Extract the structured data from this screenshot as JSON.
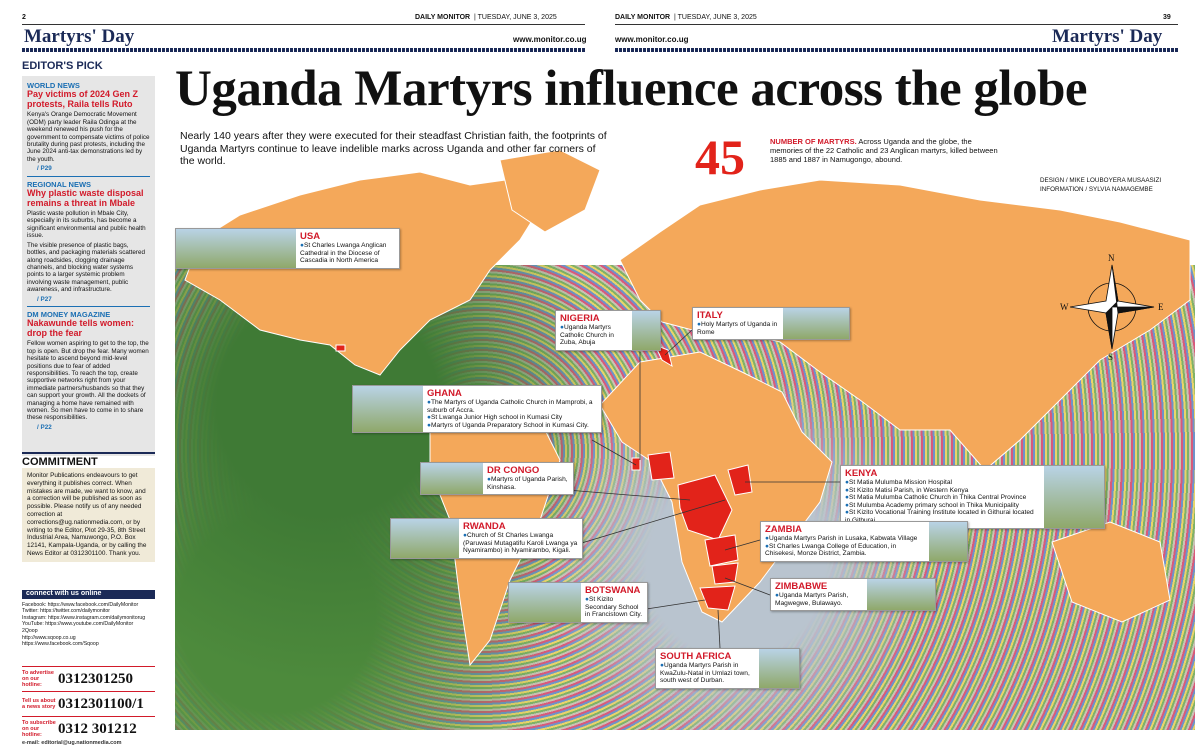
{
  "header": {
    "left_page": "2",
    "left_paper": "DAILY MONITOR",
    "left_date": "| TUESDAY, JUNE 3, 2025",
    "left_section": "Martyrs' Day",
    "left_url": "www.monitor.co.ug",
    "right_page": "39",
    "right_paper": "DAILY MONITOR",
    "right_date": "| TUESDAY, JUNE 3, 2025",
    "right_section": "Martyrs' Day",
    "right_url": "www.monitor.co.ug"
  },
  "sidebar": {
    "heading": "EDITOR'S PICK",
    "items": [
      {
        "kicker": "WORLD NEWS",
        "headline": "Pay victims of 2024 Gen Z protests, Raila tells Ruto",
        "body": [
          "Kenya's Orange Democratic Movement (ODM) party leader Raila Odinga at the weekend renewed his push for the government to compensate victims of police brutality during past protests, including the June 2024 anti-tax demonstrations led by the youth."
        ],
        "ref": "/ P29"
      },
      {
        "kicker": "REGIONAL NEWS",
        "headline": "Why plastic waste disposal remains a threat in Mbale",
        "body": [
          "Plastic waste pollution in Mbale City, especially in its suburbs, has become a significant environmental and public health issue.",
          "The visible presence of plastic bags, bottles, and packaging materials scattered along roadsides, clogging drainage channels, and blocking water systems points to a larger systemic problem involving waste management, public awareness, and infrastructure."
        ],
        "ref": "/ P27"
      },
      {
        "kicker": "DM MONEY MAGAZINE",
        "headline": "Nakawunde tells women: drop the fear",
        "body": [
          "Fellow women aspiring to get to the top, the top is open. But drop the fear. Many women hesitate to ascend beyond mid-level positions due to fear of added responsibilities. To reach the top, create supportive networks right from your immediate partners/husbands so that they can support your growth. All the dockets of managing a home have remained with women. So men have to come in to share these responsibilities."
        ],
        "ref": "/ P22"
      }
    ]
  },
  "commitment": {
    "heading": "COMMITMENT",
    "body": "Monitor Publications endeavours to get everything it publishes correct. When mistakes are made, we want to know, and a correction will be published as soon as possible. Please notify us of any needed correction at corrections@ug.nationmedia.com, or by writing to the Editor, Plot 29-35, 8th Street Industrial Area, Namuwongo, P.O. Box 12141, Kampala-Uganda, or by calling the News Editor at 0312301100. Thank you."
  },
  "connect": {
    "heading": "connect with us online",
    "lines": [
      "Facebook: https://www.facebook.com/DailyMonitor",
      "Twitter: https://twitter.com/dailymonitor",
      "Instagram: https://www.instagram.com/dailymonitorug",
      "YouTube: https://www.youtube.com/DailyMonitor",
      "2Qoop",
      "http://www.sqoop.co.ug",
      "https://www.facebook.com/Sqoop"
    ]
  },
  "hotlines": [
    {
      "label": "To advertise on our hotline:",
      "number": "0312301250"
    },
    {
      "label": "Tell us about a news story",
      "number": "0312301100/1"
    },
    {
      "label": "To subscribe on our hotline:",
      "number": "0312 301212"
    }
  ],
  "email": "e-mail: editorial@ug.nationmedia.com",
  "main": {
    "title": "Uganda Martyrs influence across the globe",
    "intro": "Nearly 140 years after they were executed for their steadfast Christian faith, the footprints of Uganda Martyrs continue to leave indelible marks across Uganda and other far corners of the world.",
    "stat_number": 45,
    "stat_label": "NUMBER OF MARTYRS.",
    "stat_text": "Across Uganda and the globe, the memories of the 22 Catholic and 23 Anglican martyrs, killed between 1885 and 1887 in Namugongo, abound.",
    "credits": [
      "DESIGN / MIKE LOUBOYERA MUSAASIZI",
      "INFORMATION / SYLVIA NAMAGEMBE"
    ],
    "compass": [
      "N",
      "E",
      "S",
      "W"
    ]
  },
  "callouts": [
    {
      "country": "USA",
      "items": [
        "St Charles Lwanga Anglican Cathedral in the Diocese of Cascadia in North America"
      ]
    },
    {
      "country": "NIGERIA",
      "items": [
        "Uganda Martyrs Catholic Church in Zuba, Abuja"
      ]
    },
    {
      "country": "ITALY",
      "items": [
        "Holy Martyrs of Uganda in Rome"
      ]
    },
    {
      "country": "GHANA",
      "items": [
        "The Martyrs of Uganda Catholic Church in Mamprobi, a suburb of Accra.",
        "St Lwanga Junior High school in Kumasi City",
        "Martyrs of Uganda Preparatory School in Kumasi City."
      ]
    },
    {
      "country": "DR CONGO",
      "items": [
        "Martyrs of Uganda Parish, Kinshasa."
      ]
    },
    {
      "country": "RWANDA",
      "items": [
        "Church of St Charles Lwanga (Paruwasi Mutagatifu Karoli Lwanga ya Nyamirambo) in Nyamirambo, Kigali."
      ]
    },
    {
      "country": "BOTSWANA",
      "items": [
        "St Kizito Secondary School in Francistown City."
      ]
    },
    {
      "country": "SOUTH AFRICA",
      "items": [
        "Uganda Martyrs Parish in KwaZulu-Natal in Umlazi town, south west of Durban."
      ]
    },
    {
      "country": "KENYA",
      "items": [
        "St Matia Mulumba Mission Hospital",
        "St Kizito Matisi Parish, in Western Kenya",
        "St Matia Mulumba Catholic Church in Thika Central Province",
        "St Mulumba Academy primary school in Thika Municipality",
        "St Kizito Vocational Training Institute located in Githurai located in Githurai"
      ]
    },
    {
      "country": "ZAMBIA",
      "items": [
        "Uganda Martyrs Parish in Lusaka, Kabwata Village",
        "St Charles Lwanga College of Education, in Chisekesi, Monze District, Zambia."
      ]
    },
    {
      "country": "ZIMBABWE",
      "items": [
        "Uganda Martyrs Parish, Magwegwe, Bulawayo."
      ]
    }
  ]
}
